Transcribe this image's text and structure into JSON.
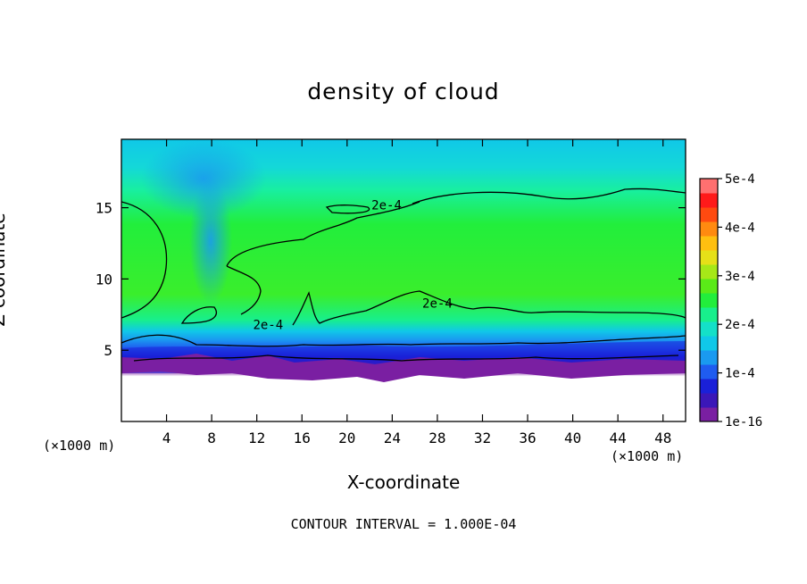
{
  "chart_data": {
    "type": "heatmap",
    "title": "density of cloud",
    "xlabel": "X-coordinate",
    "ylabel": "Z-coordinate",
    "x_unit_label": "(×1000 m)",
    "x_ticks": [
      4,
      8,
      12,
      16,
      20,
      24,
      28,
      32,
      36,
      40,
      44,
      48
    ],
    "y_ticks": [
      5,
      10,
      15
    ],
    "xlim": [
      0,
      50
    ],
    "ylim": [
      0,
      19.8
    ],
    "colorbar": {
      "min": 1e-16,
      "max": 0.0005,
      "tick_labels": [
        "1e-16",
        "1e-4",
        "2e-4",
        "3e-4",
        "4e-4",
        "5e-4"
      ],
      "colors": [
        "#7a1fa2",
        "#3b17b8",
        "#1a20d8",
        "#1f5cf0",
        "#1a9af0",
        "#10c8e8",
        "#14e0c8",
        "#18ef8c",
        "#22ee3c",
        "#5aea18",
        "#a6e818",
        "#e6e018",
        "#ffbf10",
        "#ff8a10",
        "#ff4a10",
        "#ff1a1a",
        "#ff7070"
      ]
    },
    "contour_labels": [
      {
        "text": "2e-4",
        "x": 23.5,
        "z": 15.2
      },
      {
        "text": "2e-4",
        "x": 13.0,
        "z": 6.8
      },
      {
        "text": "2e-4",
        "x": 28.0,
        "z": 8.3
      }
    ],
    "field_description_levels": {
      "top_band_z_above_17": 0.00013,
      "upper_cloud_10_to_16": 0.00023,
      "mid_cloud_6_to_10": 0.0002,
      "cloud_base_5": 0.0001,
      "below_base_4": 1e-16
    },
    "footer": "CONTOUR INTERVAL = 1.000E-04"
  }
}
